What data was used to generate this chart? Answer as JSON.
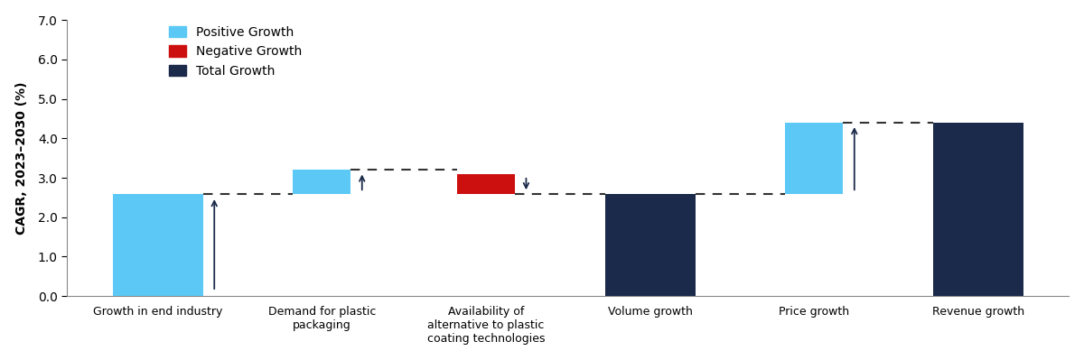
{
  "categories": [
    "Growth in end industry",
    "Demand for plastic\npackaging",
    "Availability of\nalternative to plastic\ncoating technologies",
    "Volume growth",
    "Price growth",
    "Revenue growth"
  ],
  "values": [
    2.6,
    3.2,
    3.1,
    2.6,
    4.4,
    4.4
  ],
  "bar_bottoms": [
    0.0,
    2.6,
    2.6,
    0.0,
    2.6,
    0.0
  ],
  "bar_types": [
    "positive",
    "positive",
    "negative",
    "total",
    "positive",
    "total"
  ],
  "colors": {
    "positive": "#5BC8F5",
    "negative": "#CC1010",
    "total": "#1B2A4A"
  },
  "legend_labels": [
    "Positive Growth",
    "Negative Growth",
    "Total Growth"
  ],
  "legend_colors": [
    "#5BC8F5",
    "#CC1010",
    "#1B2A4A"
  ],
  "ylabel": "CAGR, 2023–2030 (%)",
  "ylim": [
    0,
    7.0
  ],
  "yticks": [
    0.0,
    1.0,
    2.0,
    3.0,
    4.0,
    5.0,
    6.0,
    7.0
  ],
  "bar_widths": [
    0.55,
    0.35,
    0.35,
    0.55,
    0.35,
    0.55
  ],
  "arrow_color": "#1B2A4A",
  "dashed_color": "#333333",
  "figsize": [
    12.0,
    3.99
  ],
  "dpi": 100
}
